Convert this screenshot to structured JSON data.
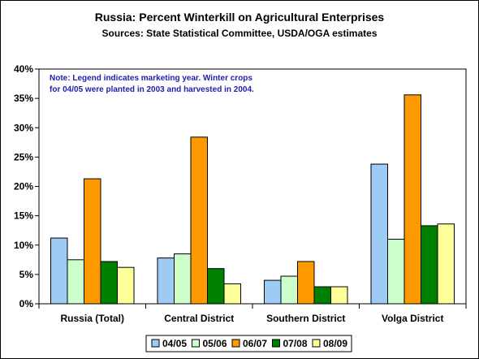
{
  "chart_data": {
    "type": "bar",
    "title": "Russia:  Percent Winterkill on Agricultural Enterprises",
    "subtitle": "Sources:  State Statistical Committee, USDA/OGA estimates",
    "note_lines": [
      "Note:  Legend indicates marketing year.  Winter crops",
      "for 04/05 were planted in 2003 and harvested in 2004."
    ],
    "categories": [
      "Russia (Total)",
      "Central District",
      "Southern District",
      "Volga District"
    ],
    "series": [
      {
        "name": "04/05",
        "color": "#9ecbf4",
        "values": [
          11.2,
          7.8,
          4.0,
          23.8
        ]
      },
      {
        "name": "05/06",
        "color": "#ccffcc",
        "values": [
          7.5,
          8.5,
          4.7,
          11.0
        ]
      },
      {
        "name": "06/07",
        "color": "#ff9900",
        "values": [
          21.3,
          28.4,
          7.2,
          35.6
        ]
      },
      {
        "name": "07/08",
        "color": "#008000",
        "values": [
          7.2,
          6.0,
          2.9,
          13.3
        ]
      },
      {
        "name": "08/09",
        "color": "#ffff99",
        "values": [
          6.2,
          3.4,
          2.9,
          13.6
        ]
      }
    ],
    "yticks": [
      "0%",
      "5%",
      "10%",
      "15%",
      "20%",
      "25%",
      "30%",
      "35%",
      "40%"
    ],
    "ylim": [
      0,
      40
    ],
    "grid": false,
    "legend_position": "bottom"
  }
}
